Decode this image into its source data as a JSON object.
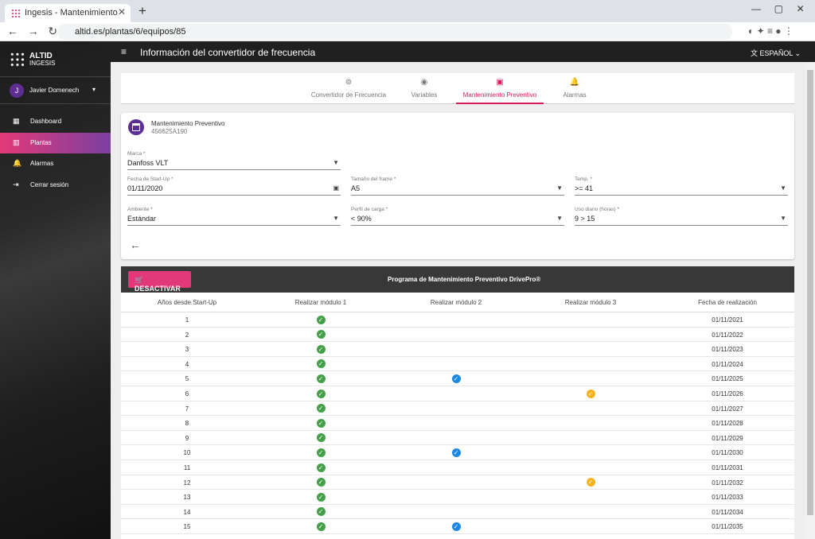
{
  "browser": {
    "tab_title": "Ingesis - Mantenimiento",
    "url": "altid.es/plantas/6/equipos/85"
  },
  "app": {
    "logo_top": "ALTID",
    "logo_bottom": "INGESIS",
    "header_title": "Información del convertidor de frecuencia",
    "language": "ESPAÑOL"
  },
  "user": {
    "initial": "J",
    "name": "Javier Domenech"
  },
  "nav": [
    "Dashboard",
    "Plantas",
    "Alarmas",
    "Cerrar sesión"
  ],
  "tabs": [
    "Convertidor de Frecuencia",
    "Variables",
    "Mantenimiento Preventivo",
    "Alarmas"
  ],
  "card": {
    "title": "Mantenimiento Preventivo",
    "code": "456625A190"
  },
  "fields": [
    {
      "label": "Marca *",
      "value": "Danfoss VLT"
    },
    {
      "label": "Fecha de Start-Up *",
      "value": "01/11/2020"
    },
    {
      "label": "Tamaño del frame *",
      "value": "A5"
    },
    {
      "label": "Temp. *",
      "value": ">= 41"
    },
    {
      "label": "Ambiente *",
      "value": "Estándar"
    },
    {
      "label": "Perfil de carga *",
      "value": "< 90%"
    },
    {
      "label": "Uso diario (horas) *",
      "value": "9 > 15"
    }
  ],
  "table": {
    "button": "DESACTIVAR",
    "title": "Programa de Mantenimiento Preventivo DrivePro®",
    "columns": [
      "Años desde Start-Up",
      "Realizar módulo 1",
      "Realizar módulo 2",
      "Realizar módulo 3",
      "Fecha de realización"
    ],
    "rows": [
      [
        "1",
        true,
        false,
        false,
        "01/11/2021"
      ],
      [
        "2",
        true,
        false,
        false,
        "01/11/2022"
      ],
      [
        "3",
        true,
        false,
        false,
        "01/11/2023"
      ],
      [
        "4",
        true,
        false,
        false,
        "01/11/2024"
      ],
      [
        "5",
        true,
        true,
        false,
        "01/11/2025"
      ],
      [
        "6",
        true,
        false,
        true,
        "01/11/2026"
      ],
      [
        "7",
        true,
        false,
        false,
        "01/11/2027"
      ],
      [
        "8",
        true,
        false,
        false,
        "01/11/2028"
      ],
      [
        "9",
        true,
        false,
        false,
        "01/11/2029"
      ],
      [
        "10",
        true,
        true,
        false,
        "01/11/2030"
      ],
      [
        "11",
        true,
        false,
        false,
        "01/11/2031"
      ],
      [
        "12",
        true,
        false,
        true,
        "01/11/2032"
      ],
      [
        "13",
        true,
        false,
        false,
        "01/11/2033"
      ],
      [
        "14",
        true,
        false,
        false,
        "01/11/2034"
      ],
      [
        "15",
        true,
        true,
        false,
        "01/11/2035"
      ]
    ]
  }
}
